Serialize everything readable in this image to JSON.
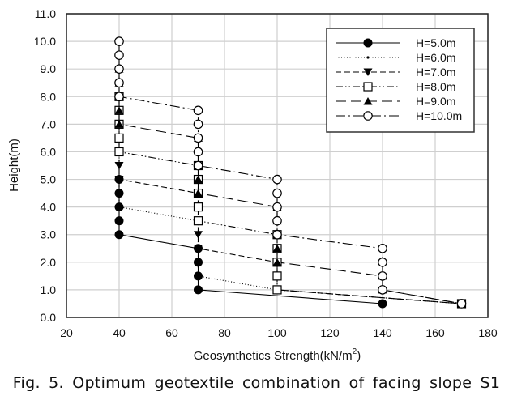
{
  "chart_data": {
    "type": "line",
    "title": "",
    "xlabel": "Geosynthetics Strength(kN/m",
    "xlabel_sup": "2",
    "xlabel_close": ")",
    "ylabel": "Height(m)",
    "xlim": [
      20,
      180
    ],
    "ylim": [
      0,
      11
    ],
    "xticks": [
      "20",
      "40",
      "60",
      "80",
      "100",
      "120",
      "140",
      "160",
      "180"
    ],
    "yticks": [
      "0.0",
      "1.0",
      "2.0",
      "3.0",
      "4.0",
      "5.0",
      "6.0",
      "7.0",
      "8.0",
      "9.0",
      "10.0",
      "11.0"
    ],
    "grid": true,
    "legend_position": "top-right",
    "series": [
      {
        "name": "H=5.0m",
        "marker": "filled-circle",
        "line": "solid",
        "points": [
          [
            40,
            5.0
          ],
          [
            40,
            4.5
          ],
          [
            40,
            4.0
          ],
          [
            40,
            3.5
          ],
          [
            40,
            3.0
          ],
          [
            70,
            2.5
          ],
          [
            70,
            2.0
          ],
          [
            70,
            1.5
          ],
          [
            70,
            1.0
          ],
          [
            140,
            0.5
          ]
        ]
      },
      {
        "name": "H=6.0m",
        "marker": "small-dot",
        "line": "dotted",
        "points": [
          [
            40,
            6.0
          ],
          [
            40,
            5.5
          ],
          [
            40,
            5.0
          ],
          [
            40,
            4.5
          ],
          [
            40,
            4.0
          ],
          [
            70,
            3.5
          ],
          [
            70,
            3.0
          ],
          [
            70,
            2.5
          ],
          [
            70,
            2.0
          ],
          [
            70,
            1.5
          ],
          [
            100,
            1.0
          ],
          [
            170,
            0.5
          ]
        ]
      },
      {
        "name": "H=7.0m",
        "marker": "filled-triangle-down",
        "line": "dashed",
        "points": [
          [
            40,
            7.0
          ],
          [
            40,
            6.5
          ],
          [
            40,
            6.0
          ],
          [
            40,
            5.5
          ],
          [
            40,
            5.0
          ],
          [
            70,
            4.5
          ],
          [
            70,
            4.0
          ],
          [
            70,
            3.5
          ],
          [
            70,
            3.0
          ],
          [
            70,
            2.5
          ],
          [
            100,
            2.0
          ],
          [
            100,
            1.5
          ],
          [
            100,
            1.0
          ],
          [
            170,
            0.5
          ]
        ]
      },
      {
        "name": "H=8.0m",
        "marker": "open-square",
        "line": "dash-dot-dot",
        "points": [
          [
            40,
            8.0
          ],
          [
            40,
            7.5
          ],
          [
            40,
            7.0
          ],
          [
            40,
            6.5
          ],
          [
            40,
            6.0
          ],
          [
            70,
            5.5
          ],
          [
            70,
            5.0
          ],
          [
            70,
            4.5
          ],
          [
            70,
            4.0
          ],
          [
            70,
            3.5
          ],
          [
            100,
            3.0
          ],
          [
            100,
            2.5
          ],
          [
            100,
            2.0
          ],
          [
            100,
            1.5
          ],
          [
            100,
            1.0
          ],
          [
            170,
            0.5
          ]
        ]
      },
      {
        "name": "H=9.0m",
        "marker": "filled-triangle-up",
        "line": "long-dash",
        "points": [
          [
            40,
            9.0
          ],
          [
            40,
            8.5
          ],
          [
            40,
            8.0
          ],
          [
            40,
            7.5
          ],
          [
            40,
            7.0
          ],
          [
            70,
            6.5
          ],
          [
            70,
            6.0
          ],
          [
            70,
            5.5
          ],
          [
            70,
            5.0
          ],
          [
            70,
            4.5
          ],
          [
            100,
            4.0
          ],
          [
            100,
            3.5
          ],
          [
            100,
            3.0
          ],
          [
            100,
            2.5
          ],
          [
            100,
            2.0
          ],
          [
            140,
            1.5
          ],
          [
            140,
            1.0
          ],
          [
            170,
            0.5
          ]
        ]
      },
      {
        "name": "H=10.0m",
        "marker": "open-circle",
        "line": "dash-dot",
        "points": [
          [
            40,
            10.0
          ],
          [
            40,
            9.5
          ],
          [
            40,
            9.0
          ],
          [
            40,
            8.5
          ],
          [
            40,
            8.0
          ],
          [
            70,
            7.5
          ],
          [
            70,
            7.0
          ],
          [
            70,
            6.5
          ],
          [
            70,
            6.0
          ],
          [
            70,
            5.5
          ],
          [
            100,
            5.0
          ],
          [
            100,
            4.5
          ],
          [
            100,
            4.0
          ],
          [
            100,
            3.5
          ],
          [
            100,
            3.0
          ],
          [
            140,
            2.5
          ],
          [
            140,
            2.0
          ],
          [
            140,
            1.5
          ],
          [
            140,
            1.0
          ],
          [
            170,
            0.5
          ]
        ]
      }
    ]
  },
  "caption": "Fig. 5. Optimum geotextile combination of facing slope S1"
}
